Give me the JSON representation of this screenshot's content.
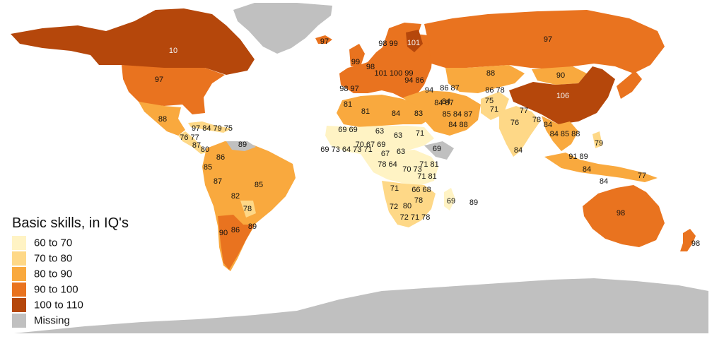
{
  "legend": {
    "title": "Basic skills, in IQ's",
    "items": [
      {
        "label": "60 to 70",
        "color": "#fff3c4"
      },
      {
        "label": "70 to 80",
        "color": "#fed887"
      },
      {
        "label": "80 to 90",
        "color": "#f9a93e"
      },
      {
        "label": "90 to 100",
        "color": "#e9731f"
      },
      {
        "label": "100 to 110",
        "color": "#b5470b"
      },
      {
        "label": "Missing",
        "color": "#c0c0c0"
      }
    ]
  },
  "region_labels": {
    "canada": "10",
    "usa": "97",
    "mexico": "88",
    "caribbean": "97 84 79 75",
    "central_america_a": "76 77",
    "central_america_b": "87",
    "central_america_c": "80",
    "colombia": "86",
    "venezuela_guyana": "89",
    "ecuador": "85",
    "peru": "87",
    "brazil": "85",
    "bolivia": "82",
    "paraguay": "78",
    "chile": "90",
    "argentina": "86",
    "uruguay": "89",
    "iceland": "97",
    "uk_ireland": "99",
    "france": "98",
    "iberia": "98 97",
    "scandinavia": "98 99",
    "finland": "101",
    "central_europe": "101 100 99",
    "balkans": "94 86",
    "turkey": "94",
    "caucasus": "86 87",
    "russia": "97",
    "kazakhstan": "88",
    "mongolia": "90",
    "china": "106",
    "central_asia": "86 78",
    "iran": "84",
    "afghanistan": "75",
    "pakistan": "71",
    "india": "76",
    "nepal": "77",
    "bangladesh": "78",
    "myanmar": "84",
    "thailand_vietnam": "84 85 88",
    "sri_lanka": "84",
    "philippines": "79",
    "malaysia": "91 89",
    "indonesia": "84",
    "png": "77",
    "timor": "84",
    "australia": "98",
    "new_zealand": "98",
    "morocco": "81",
    "algeria": "81",
    "libya": "84",
    "egypt": "83",
    "levant_gulf": "85 84 87",
    "arabia": "84 88",
    "iraq_syria": "84 87",
    "sudan": "71",
    "mauritania_mali": "69 69",
    "niger": "63",
    "chad": "63",
    "west_africa": "70 67 69",
    "west_africa_coast": "69 73 64 73 71",
    "nigeria": "67",
    "car": "63",
    "ethiopia": "69",
    "gabon_congo": "78 64",
    "drc": "70 73",
    "kenya_tz": "71 81",
    "angola": "71",
    "zambia": "66 68",
    "malawi_moz": "71 81",
    "namibia": "72",
    "botswana": "80",
    "zimbabwe": "78",
    "south_africa": "72 71 78",
    "madagascar": "69",
    "mauritius": "89"
  }
}
